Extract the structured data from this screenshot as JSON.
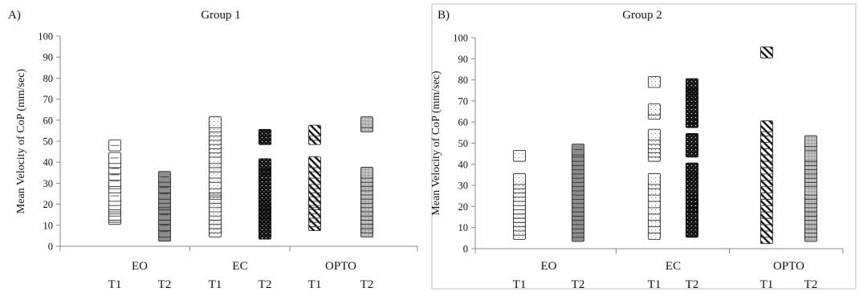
{
  "chart_data": [
    {
      "type": "scatter",
      "panel_label": "A)",
      "title": "Group 1",
      "ylabel": "Mean Velocity of CoP (mm/sec)",
      "xlabel": "",
      "ylim": [
        0,
        100
      ],
      "yticks": [
        0,
        10,
        20,
        30,
        40,
        50,
        60,
        70,
        80,
        90,
        100
      ],
      "grid": false,
      "legend": "none",
      "conditions": [
        {
          "label": "EO",
          "times": [
            "T1",
            "T2"
          ]
        },
        {
          "label": "EC",
          "times": [
            "T1",
            "T2"
          ]
        },
        {
          "label": "OPTO",
          "times": [
            "T1",
            "T2"
          ]
        }
      ],
      "series": [
        {
          "condition": "EO",
          "time": "T1",
          "pattern": "open-white",
          "values": [
            13,
            14,
            15,
            17,
            18,
            19,
            20,
            22,
            24,
            28,
            30,
            31,
            34,
            37,
            40,
            42,
            48
          ]
        },
        {
          "condition": "EO",
          "time": "T2",
          "pattern": "gray-solid",
          "values": [
            5,
            7,
            10,
            13,
            15,
            18,
            20,
            21,
            23,
            25,
            28,
            31,
            33
          ]
        },
        {
          "condition": "EC",
          "time": "T1",
          "pattern": "dotted-white",
          "values": [
            7,
            9,
            11,
            13,
            15,
            17,
            19,
            21,
            23,
            25,
            26,
            27,
            28,
            30,
            33,
            35,
            38,
            40,
            42,
            45,
            47,
            49,
            51,
            53,
            55,
            57,
            59
          ]
        },
        {
          "condition": "EC",
          "time": "T2",
          "pattern": "black-dots",
          "values": [
            6,
            8,
            10,
            12,
            14,
            16,
            18,
            20,
            22,
            24,
            26,
            28,
            30,
            32,
            34,
            37,
            39,
            51,
            53
          ]
        },
        {
          "condition": "OPTO",
          "time": "T1",
          "pattern": "diagonal-hatch",
          "values": [
            10,
            12,
            14,
            16,
            18,
            20,
            21,
            22,
            24,
            26,
            28,
            30,
            32,
            35,
            38,
            40,
            51,
            53,
            55
          ]
        },
        {
          "condition": "OPTO",
          "time": "T2",
          "pattern": "gray-dots",
          "values": [
            7,
            9,
            11,
            13,
            15,
            17,
            19,
            21,
            23,
            25,
            27,
            29,
            31,
            33,
            35,
            57,
            59
          ]
        }
      ]
    },
    {
      "type": "scatter",
      "panel_label": "B)",
      "title": "Group 2",
      "ylabel": "Mean Velocity of CoP (mm/sec)",
      "xlabel": "",
      "ylim": [
        0,
        100
      ],
      "yticks": [
        0,
        10,
        20,
        30,
        40,
        50,
        60,
        70,
        80,
        90,
        100
      ],
      "grid": false,
      "legend": "none",
      "conditions": [
        {
          "label": "EO",
          "times": [
            "T1",
            "T2"
          ]
        },
        {
          "label": "EC",
          "times": [
            "T1",
            "T2"
          ]
        },
        {
          "label": "OPTO",
          "times": [
            "T1",
            "T2"
          ]
        }
      ],
      "series": [
        {
          "condition": "EO",
          "time": "T1",
          "pattern": "dotted-white",
          "values": [
            7,
            9,
            11,
            13,
            15,
            17,
            19,
            21,
            23,
            25,
            27,
            29,
            31,
            33,
            44
          ]
        },
        {
          "condition": "EO",
          "time": "T2",
          "pattern": "gray-solid",
          "values": [
            6,
            8,
            10,
            12,
            14,
            16,
            18,
            20,
            22,
            24,
            26,
            28,
            30,
            32,
            34,
            36,
            38,
            40,
            42,
            44,
            46,
            47
          ]
        },
        {
          "condition": "EC",
          "time": "T1",
          "pattern": "dotted-white",
          "values": [
            7,
            10,
            13,
            16,
            19,
            22,
            25,
            28,
            31,
            33,
            44,
            46,
            48,
            50,
            52,
            54,
            64,
            66,
            79
          ]
        },
        {
          "condition": "EC",
          "time": "T2",
          "pattern": "black-dots",
          "values": [
            8,
            10,
            12,
            14,
            16,
            20,
            22,
            24,
            26,
            28,
            32,
            34,
            36,
            38,
            46,
            48,
            50,
            52,
            60,
            62,
            64,
            66,
            70,
            72,
            74,
            76,
            78
          ]
        },
        {
          "condition": "OPTO",
          "time": "T1",
          "pattern": "diagonal-hatch",
          "values": [
            5,
            8,
            11,
            14,
            17,
            20,
            23,
            26,
            29,
            32,
            35,
            38,
            41,
            44,
            47,
            50,
            53,
            56,
            58,
            93
          ]
        },
        {
          "condition": "OPTO",
          "time": "T2",
          "pattern": "gray-dots",
          "values": [
            6,
            8,
            10,
            12,
            14,
            16,
            18,
            20,
            22,
            24,
            26,
            28,
            32,
            34,
            36,
            38,
            40,
            42,
            44,
            49,
            51
          ]
        }
      ]
    }
  ]
}
